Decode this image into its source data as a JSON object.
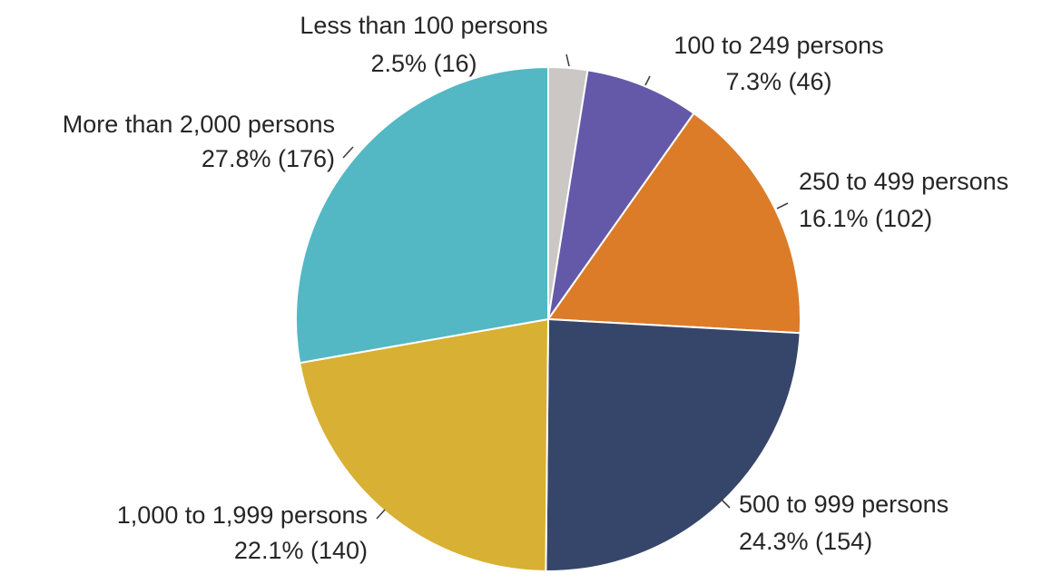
{
  "chart_data": {
    "type": "pie",
    "title": "",
    "start_angle_deg": 0,
    "direction": "clockwise",
    "slices": [
      {
        "label": "Less than 100 persons",
        "value_text": "2.5% (16)",
        "percent": 2.5,
        "count": 16,
        "color": "#cbc7c4"
      },
      {
        "label": "100 to 249 persons",
        "value_text": "7.3% (46)",
        "percent": 7.3,
        "count": 46,
        "color": "#6459a8"
      },
      {
        "label": "250 to 499 persons",
        "value_text": "16.1% (102)",
        "percent": 16.1,
        "count": 102,
        "color": "#dc7c28"
      },
      {
        "label": "500 to 999 persons",
        "value_text": "24.3% (154)",
        "percent": 24.3,
        "count": 154,
        "color": "#36466a"
      },
      {
        "label": "1,000 to 1,999 persons",
        "value_text": "22.1% (140)",
        "percent": 22.1,
        "count": 140,
        "color": "#d8b033"
      },
      {
        "label": "More than 2,000 persons",
        "value_text": "27.8% (176)",
        "percent": 27.8,
        "count": 176,
        "color": "#53b8c4"
      }
    ]
  }
}
